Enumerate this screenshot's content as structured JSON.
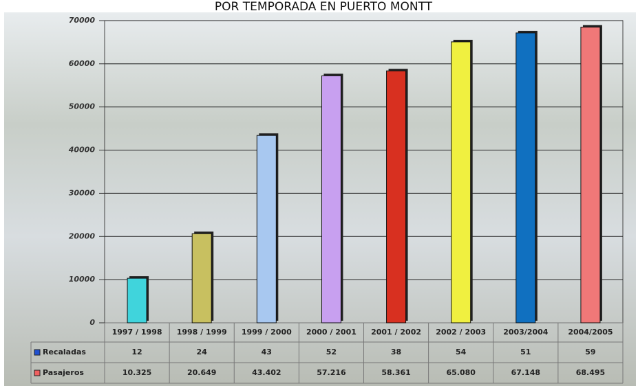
{
  "chart_data": {
    "type": "bar",
    "title": "POR TEMPORADA EN PUERTO MONTT",
    "categories": [
      "1997 / 1998",
      "1998 / 1999",
      "1999 / 2000",
      "2000 / 2001",
      "2001 / 2002",
      "2002 / 2003",
      "2003/2004",
      "2004/2005"
    ],
    "series": [
      {
        "name": "Recaladas",
        "color": "#2050d0",
        "values": [
          12,
          24,
          43,
          52,
          38,
          54,
          51,
          59
        ]
      },
      {
        "name": "Pasajeros",
        "color": "#f06060",
        "values": [
          10325,
          20649,
          43402,
          57216,
          58361,
          65080,
          67148,
          68495
        ],
        "value_labels": [
          "10.325",
          "20.649",
          "43.402",
          "57.216",
          "58.361",
          "65.080",
          "67.148",
          "68.495"
        ],
        "colors": [
          "#40d4dc",
          "#c8c060",
          "#a8c8f0",
          "#c8a0f0",
          "#d83020",
          "#f0f040",
          "#1070c0",
          "#f07878"
        ]
      }
    ],
    "ylim": [
      0,
      70000
    ],
    "yticks": [
      0,
      10000,
      20000,
      30000,
      40000,
      50000,
      60000,
      70000
    ],
    "grid": true
  }
}
